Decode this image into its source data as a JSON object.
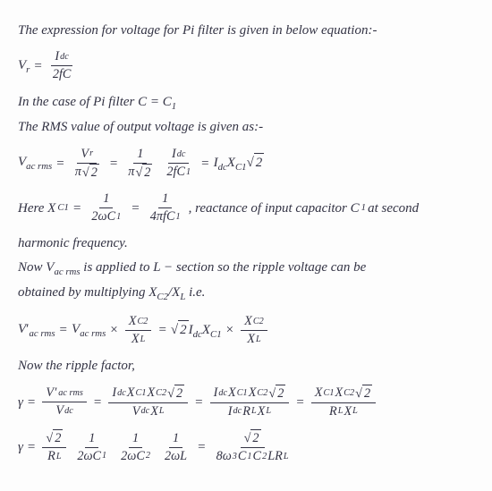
{
  "text": {
    "line1": "The expression for voltage for Pi filter is given in below equation:-",
    "line2_pre": "In the case of Pi filter C = C",
    "line2_sub": "1",
    "line3": "The RMS value of output voltage is given as:-",
    "line4_pre": "Here  X",
    "line4_sub": "C1",
    "line4_mid": " , reactance of input capacitor C",
    "line4_sub2": "1",
    "line4_post": " at second",
    "line4b": "harmonic frequency.",
    "line5_pre": "Now V",
    "line5_sub": "ac rms",
    "line5_mid": " is applied to L − section so the ripple voltage can be",
    "line5b_pre": "obtained by multiplying X",
    "line5b_sub1": "C2",
    "line5b_slash": "/X",
    "line5b_sub2": "L",
    "line5b_post": " i.e.",
    "line6": "Now the ripple factor,"
  },
  "sym": {
    "Vr": "V",
    "r": "r",
    "Idc": "I",
    "dc": "dc",
    "two_f_C": "2fC",
    "Vac": "V",
    "acrms": "ac rms",
    "pi": "π",
    "sqrt2": "2",
    "one": "1",
    "two_f_C1": "2fC",
    "sub1": "1",
    "X": "X",
    "C1": "C1",
    "C2": "C2",
    "L": "L",
    "two_w_C1": "2ωC",
    "four_pi_f_C1": "4πfC",
    "Vdc": "V",
    "Vdc_sub": "dc",
    "R": "R",
    "RL": "L",
    "times": "×",
    "eq": "=",
    "two_w_C2": "2ωC",
    "sub2": "2",
    "two_w_L": "2ωL",
    "eight_w3": "8ω",
    "w3": "3",
    "C1C2LRL_pre": "C",
    "C1C2LRL_mid": "C",
    "C1C2LRL_L": "LR",
    "gamma": "γ"
  }
}
